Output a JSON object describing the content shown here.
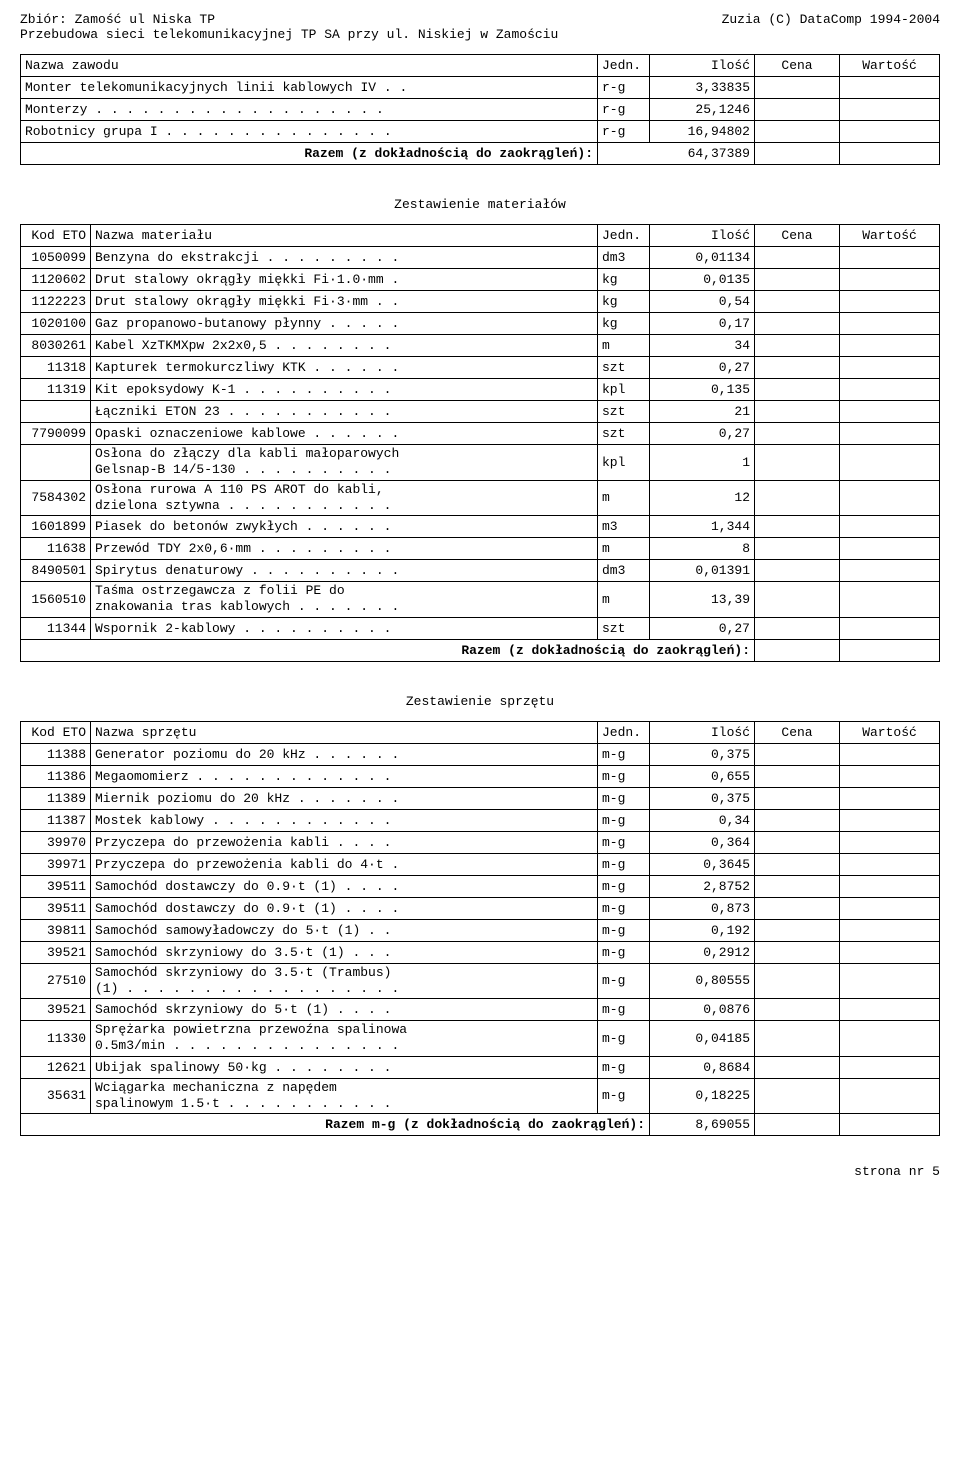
{
  "header": {
    "left": "Zbiór: Zamość ul Niska TP",
    "right": "Zuzia (C) DataComp 1994-2004",
    "subtitle": "Przebudowa sieci telekomunikacyjnej TP SA przy ul. Niskiej w Zamościu"
  },
  "occ": {
    "columns": [
      "Nazwa zawodu",
      "Jedn.",
      "Ilość",
      "Cena",
      "Wartość"
    ],
    "rows": [
      {
        "name": "Monter telekomunikacyjnych linii kablowych IV . .",
        "unit": "r-g",
        "qty": "3,33835"
      },
      {
        "name": "Monterzy . . . . . . . . . . . . . . . . . . .",
        "unit": "r-g",
        "qty": "25,1246"
      },
      {
        "name": "Robotnicy grupa I . . . . . . . . . . . . . . .",
        "unit": "r-g",
        "qty": "16,94802"
      }
    ],
    "sum_label": "Razem (z dokładnością do zaokrągleń):",
    "sum_val": "64,37389"
  },
  "mat": {
    "title": "Zestawienie materiałów",
    "columns": [
      "Kod ETO",
      "Nazwa materiału",
      "Jedn.",
      "Ilość",
      "Cena",
      "Wartość"
    ],
    "rows": [
      {
        "code": "1050099",
        "name": "Benzyna do ekstrakcji . . . . . . . . .",
        "unit": "dm3",
        "qty": "0,01134"
      },
      {
        "code": "1120602",
        "name": "Drut stalowy okrągły miękki Fi·1.0·mm .",
        "unit": "kg",
        "qty": "0,0135"
      },
      {
        "code": "1122223",
        "name": "Drut stalowy okrągły miękki Fi·3·mm . .",
        "unit": "kg",
        "qty": "0,54"
      },
      {
        "code": "1020100",
        "name": "Gaz propanowo-butanowy płynny . . . . .",
        "unit": "kg",
        "qty": "0,17"
      },
      {
        "code": "8030261",
        "name": "Kabel XzTKMXpw 2x2x0,5 . . . . . . . .",
        "unit": "m",
        "qty": "34"
      },
      {
        "code": "11318",
        "name": "Kapturek termokurczliwy KTK . . . . . .",
        "unit": "szt",
        "qty": "0,27"
      },
      {
        "code": "11319",
        "name": "Kit epoksydowy K-1 . . . . . . . . . .",
        "unit": "kpl",
        "qty": "0,135"
      },
      {
        "code": "",
        "name": "Łączniki ETON 23 . . . . . . . . . . .",
        "unit": "szt",
        "qty": "21"
      },
      {
        "code": "7790099",
        "name": "Opaski oznaczeniowe kablowe . . . . . .",
        "unit": "szt",
        "qty": "0,27"
      },
      {
        "code": "",
        "name": "Osłona do złączy dla kabli małoparowych\nGelsnap-B 14/5-130 . . . . . . . . . .",
        "unit": "kpl",
        "qty": "1",
        "multi": true
      },
      {
        "code": "7584302",
        "name": "Osłona rurowa A 110 PS AROT do kabli,\ndzielona sztywna . . . . . . . . . . .",
        "unit": "m",
        "qty": "12",
        "multi": true
      },
      {
        "code": "1601899",
        "name": "Piasek do betonów zwykłych . . . . . .",
        "unit": "m3",
        "qty": "1,344"
      },
      {
        "code": "11638",
        "name": "Przewód TDY 2x0,6·mm . . . . . . . . .",
        "unit": "m",
        "qty": "8"
      },
      {
        "code": "8490501",
        "name": "Spirytus denaturowy . . . . . . . . . .",
        "unit": "dm3",
        "qty": "0,01391"
      },
      {
        "code": "1560510",
        "name": "Taśma ostrzegawcza z folii PE do\nznakowania tras kablowych . . . . . . .",
        "unit": "m",
        "qty": "13,39",
        "multi": true
      },
      {
        "code": "11344",
        "name": "Wspornik 2-kablowy . . . . . . . . . .",
        "unit": "szt",
        "qty": "0,27"
      }
    ],
    "sum_label": "Razem (z dokładnością do zaokrągleń):",
    "sum_val": ""
  },
  "sprz": {
    "title": "Zestawienie sprzętu",
    "columns": [
      "Kod ETO",
      "Nazwa sprzętu",
      "Jedn.",
      "Ilość",
      "Cena",
      "Wartość"
    ],
    "rows": [
      {
        "code": "11388",
        "name": "Generator poziomu do 20 kHz . . . . . .",
        "unit": "m-g",
        "qty": "0,375"
      },
      {
        "code": "11386",
        "name": "Megaomomierz . . . . . . . . . . . . .",
        "unit": "m-g",
        "qty": "0,655"
      },
      {
        "code": "11389",
        "name": "Miernik poziomu do 20 kHz . . . . . . .",
        "unit": "m-g",
        "qty": "0,375"
      },
      {
        "code": "11387",
        "name": "Mostek kablowy . . . . . . . . . . . .",
        "unit": "m-g",
        "qty": "0,34"
      },
      {
        "code": "39970",
        "name": "Przyczepa do przewożenia kabli . . . .",
        "unit": "m-g",
        "qty": "0,364"
      },
      {
        "code": "39971",
        "name": "Przyczepa do przewożenia kabli do 4·t .",
        "unit": "m-g",
        "qty": "0,3645"
      },
      {
        "code": "39511",
        "name": "Samochód dostawczy do 0.9·t (1) . . . .",
        "unit": "m-g",
        "qty": "2,8752"
      },
      {
        "code": "39511",
        "name": "Samochód dostawczy do 0.9·t (1) . . . .",
        "unit": "m-g",
        "qty": "0,873"
      },
      {
        "code": "39811",
        "name": "Samochód samowyładowczy do 5·t (1) . .",
        "unit": "m-g",
        "qty": "0,192"
      },
      {
        "code": "39521",
        "name": "Samochód skrzyniowy do 3.5·t (1) . . .",
        "unit": "m-g",
        "qty": "0,2912"
      },
      {
        "code": "27510",
        "name": "Samochód skrzyniowy do 3.5·t (Trambus)\n(1) . . . . . . . . . . . . . . . . . .",
        "unit": "m-g",
        "qty": "0,80555",
        "multi": true
      },
      {
        "code": "39521",
        "name": "Samochód skrzyniowy do 5·t (1) . . . .",
        "unit": "m-g",
        "qty": "0,0876"
      },
      {
        "code": "11330",
        "name": "Sprężarka powietrzna przewoźna spalinowa\n0.5m3/min . . . . . . . . . . . . . . .",
        "unit": "m-g",
        "qty": "0,04185",
        "multi": true
      },
      {
        "code": "12621",
        "name": "Ubijak spalinowy 50·kg . . . . . . . .",
        "unit": "m-g",
        "qty": "0,8684"
      },
      {
        "code": "35631",
        "name": "Wciągarka mechaniczna z napędem\nspalinowym 1.5·t . . . . . . . . . . .",
        "unit": "m-g",
        "qty": "0,18225",
        "multi": true
      }
    ],
    "sum_label": "Razem m-g (z dokładnością do zaokrągleń):",
    "sum_val": "8,69055"
  },
  "footer": {
    "page": "strona nr   5"
  }
}
